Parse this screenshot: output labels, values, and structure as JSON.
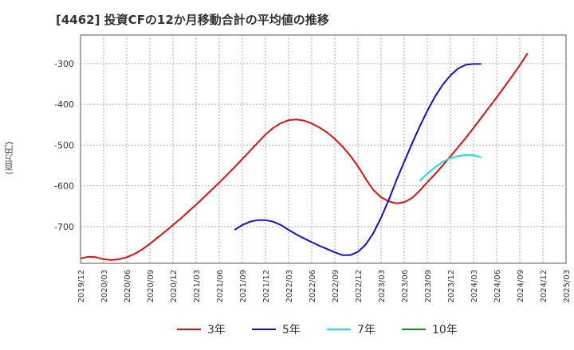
{
  "chart_data": {
    "type": "line",
    "title": "[4462]  投資CFの12か月移動合計の平均値の推移",
    "ylabel": "(百万円)",
    "xlabel": "",
    "ylim": [
      -790,
      -230
    ],
    "yticks": [
      -300,
      -400,
      -500,
      -600,
      -700
    ],
    "xticks": [
      "2019/12",
      "2020/03",
      "2020/06",
      "2020/09",
      "2020/12",
      "2021/03",
      "2021/06",
      "2021/09",
      "2021/12",
      "2022/03",
      "2022/06",
      "2022/09",
      "2022/12",
      "2023/03",
      "2023/06",
      "2023/09",
      "2023/12",
      "2024/03",
      "2024/06",
      "2024/09",
      "2024/12",
      "2025/03"
    ],
    "grid": true,
    "legend": "bottom",
    "series": [
      {
        "name": "3年",
        "color": "#dd1111",
        "start": "2019/12",
        "values": [
          -778,
          -774,
          -775,
          -780,
          -782,
          -780,
          -775,
          -767,
          -756,
          -742,
          -727,
          -712,
          -696,
          -680,
          -663,
          -646,
          -628,
          -610,
          -592,
          -573,
          -554,
          -534,
          -514,
          -494,
          -474,
          -458,
          -446,
          -439,
          -437,
          -440,
          -447,
          -457,
          -469,
          -485,
          -504,
          -526,
          -552,
          -583,
          -610,
          -628,
          -638,
          -643,
          -640,
          -630,
          -612,
          -591,
          -571,
          -550,
          -528,
          -505,
          -482,
          -458,
          -433,
          -408,
          -383,
          -357,
          -331,
          -304,
          -275
        ]
      },
      {
        "name": "5年",
        "color": "#1111cc",
        "start": "2021/08",
        "values": [
          -708,
          -696,
          -688,
          -684,
          -684,
          -688,
          -696,
          -708,
          -719,
          -729,
          -738,
          -747,
          -755,
          -763,
          -770,
          -770,
          -762,
          -744,
          -716,
          -678,
          -634,
          -586,
          -541,
          -497,
          -455,
          -416,
          -381,
          -352,
          -329,
          -312,
          -303,
          -301,
          -301
        ]
      },
      {
        "name": "7年",
        "color": "#22dddd",
        "start": "2023/08",
        "values": [
          -588,
          -570,
          -554,
          -541,
          -532,
          -527,
          -524,
          -525,
          -530
        ]
      },
      {
        "name": "10年",
        "color": "#228822",
        "start": "2025/03",
        "values": []
      }
    ]
  }
}
